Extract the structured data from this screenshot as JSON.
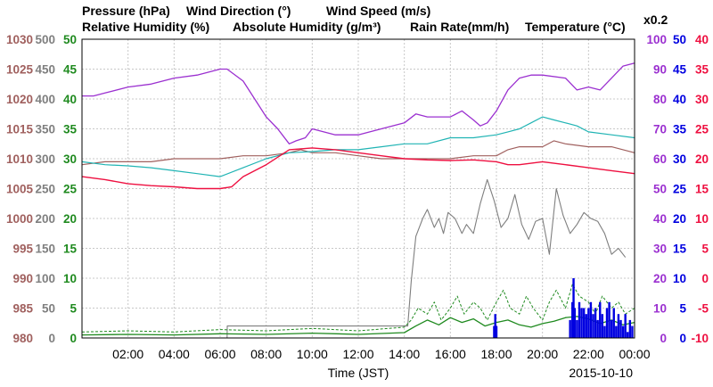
{
  "colors": {
    "pressure": "#A0605E",
    "wind_direction": "#7F7F7F",
    "wind_speed": "#1F8A1F",
    "humidity": "#9B30D0",
    "abs_humidity": "#20B4B4",
    "rain": "#0000E0",
    "temperature": "#EE1040"
  },
  "legend": {
    "pressure": "Pressure (hPa)",
    "wind_direction": "Wind Direction (°)",
    "wind_speed": "Wind Speed (m/s)",
    "humidity": "Relative Humidity (%)",
    "abs_humidity": "Absolute Humidity (g/m³)",
    "rain": "Rain Rate(mm/h)",
    "temperature": "Temperature (°C)",
    "abs_scale": "x0.2"
  },
  "xlabel": "Time (JST)",
  "date": "2015-10-10",
  "chart_data": {
    "type": "line",
    "grid": true,
    "x_ticks": [
      "02:00",
      "04:00",
      "06:00",
      "08:00",
      "10:00",
      "12:00",
      "14:00",
      "16:00",
      "18:00",
      "20:00",
      "22:00",
      "00:00"
    ],
    "xlim": [
      "00:00",
      "24:00"
    ],
    "axes": {
      "pressure": {
        "ticks": [
          "1030",
          "1025",
          "1020",
          "1015",
          "1010",
          "1005",
          "1000",
          "995",
          "990",
          "985",
          "980"
        ],
        "range": [
          980,
          1030
        ]
      },
      "wind_direction": {
        "ticks": [
          "500",
          "450",
          "400",
          "350",
          "300",
          "250",
          "200",
          "150",
          "100",
          "50",
          "0"
        ],
        "range": [
          0,
          500
        ]
      },
      "wind_speed": {
        "ticks": [
          "50",
          "45",
          "40",
          "35",
          "30",
          "25",
          "20",
          "15",
          "10",
          "5",
          "0"
        ],
        "range": [
          0,
          50
        ]
      },
      "humidity": {
        "ticks": [
          "100",
          "90",
          "80",
          "70",
          "60",
          "50",
          "40",
          "30",
          "20",
          "10",
          "0"
        ],
        "range": [
          0,
          100
        ]
      },
      "abs_humidity": {
        "ticks": [
          "50",
          "45",
          "40",
          "35",
          "30",
          "25",
          "20",
          "15",
          "10",
          "5",
          "0"
        ],
        "range": [
          0,
          50
        ]
      },
      "temperature": {
        "ticks": [
          "40",
          "35",
          "30",
          "25",
          "20",
          "15",
          "10",
          "5",
          "0",
          "-5",
          "-10"
        ],
        "range": [
          -10,
          40
        ]
      }
    },
    "series": [
      {
        "name": "Pressure (hPa)",
        "key": "pressure",
        "x": [
          0,
          1,
          2,
          3,
          4,
          5,
          6,
          7,
          8,
          9,
          9.5,
          10,
          11,
          12,
          13,
          14,
          15,
          16,
          17,
          18,
          18.5,
          19,
          20,
          20.5,
          21,
          22,
          23,
          24
        ],
        "values": [
          1009,
          1009.5,
          1009.5,
          1009.5,
          1010,
          1010,
          1010,
          1010.5,
          1010.5,
          1011,
          1011.5,
          1011,
          1011,
          1010.5,
          1010,
          1010,
          1010,
          1010,
          1010.5,
          1010.5,
          1011.5,
          1012,
          1012,
          1013,
          1012.5,
          1012,
          1012,
          1011
        ]
      },
      {
        "name": "Wind Direction (°)",
        "key": "wind_direction",
        "x": [
          0,
          6.3,
          6.31,
          14.15,
          14.3,
          14.5,
          14.8,
          15.0,
          15.3,
          15.5,
          15.7,
          15.9,
          16.2,
          16.5,
          16.7,
          17.0,
          17.3,
          17.6,
          17.9,
          18.2,
          18.5,
          18.8,
          19.1,
          19.4,
          19.7,
          20.0,
          20.3,
          20.6,
          20.9,
          21.2,
          21.5,
          21.8,
          22.1,
          22.4,
          22.7,
          23.0,
          23.3,
          23.6
        ],
        "values": [
          0,
          0,
          20,
          20,
          95,
          170,
          200,
          215,
          185,
          200,
          175,
          210,
          200,
          175,
          190,
          175,
          225,
          265,
          230,
          185,
          200,
          240,
          190,
          165,
          195,
          200,
          140,
          250,
          205,
          175,
          190,
          210,
          200,
          195,
          175,
          140,
          150,
          135
        ]
      },
      {
        "name": "Wind Speed (m/s)",
        "key": "wind_speed",
        "x": [
          0,
          2,
          4,
          6,
          8,
          10,
          12,
          14,
          14.5,
          15,
          15.5,
          16,
          16.5,
          17,
          17.5,
          18,
          18.5,
          19,
          19.5,
          20,
          20.5,
          21,
          21.5,
          22,
          22.5,
          23,
          23.5,
          24
        ],
        "values": [
          0.5,
          0.6,
          0.5,
          0.7,
          0.6,
          0.8,
          0.6,
          0.9,
          2.0,
          3.0,
          2.2,
          3.4,
          2.6,
          3.2,
          2.0,
          2.6,
          3.0,
          2.2,
          1.8,
          2.4,
          2.8,
          3.4,
          3.6,
          3.2,
          2.4,
          3.0,
          2.2,
          2.6
        ]
      },
      {
        "name": "Wind Speed (m/s)",
        "key": "wind_gust",
        "x": [
          0,
          2,
          4,
          6,
          8,
          10,
          12,
          14,
          14.3,
          14.6,
          15,
          15.3,
          15.6,
          16,
          16.3,
          16.6,
          17,
          17.3,
          17.6,
          18,
          18.3,
          18.6,
          19,
          19.3,
          19.6,
          20,
          20.3,
          20.6,
          21,
          21.3,
          21.6,
          22,
          22.3,
          22.6,
          23,
          23.3,
          23.6,
          24
        ],
        "values": [
          1,
          1.2,
          1.0,
          1.4,
          1.2,
          1.6,
          1.2,
          1.8,
          3,
          5,
          4,
          6,
          3,
          5,
          7,
          4,
          6,
          5,
          3,
          6,
          8,
          5,
          4,
          7,
          5,
          3,
          6,
          8,
          5,
          9,
          7,
          6,
          4,
          7,
          5,
          6,
          4,
          5
        ]
      },
      {
        "name": "Relative Humidity (%)",
        "key": "humidity",
        "x": [
          0,
          0.5,
          1,
          2,
          3,
          4,
          5,
          5.5,
          6,
          6.3,
          7,
          8,
          8.5,
          9,
          9.3,
          9.7,
          10,
          11,
          12,
          13,
          14,
          14.5,
          15,
          16,
          16.5,
          17,
          17.3,
          17.6,
          18,
          18.5,
          19,
          19.5,
          20,
          21,
          21.5,
          22,
          22.5,
          23,
          23.5,
          24
        ],
        "values": [
          81,
          81,
          82,
          84,
          85,
          87,
          88,
          89,
          90,
          90,
          86,
          74,
          70,
          65,
          66,
          67,
          70,
          68,
          68,
          70,
          72,
          75,
          74,
          74,
          76,
          73,
          71,
          72,
          76,
          83,
          87,
          88,
          88,
          87,
          83,
          84,
          83,
          87,
          91,
          92
        ]
      },
      {
        "name": "Absolute Humidity (g/m³)",
        "key": "abs_humidity",
        "x": [
          0,
          1,
          2,
          3,
          4,
          5,
          6,
          7,
          8,
          9,
          10,
          11,
          12,
          13,
          14,
          15,
          16,
          17,
          18,
          18.5,
          19,
          19.5,
          20,
          20.5,
          21,
          21.5,
          22,
          23,
          24
        ],
        "values": [
          29.5,
          29.0,
          28.8,
          28.5,
          28.0,
          27.5,
          27.0,
          28.5,
          30.0,
          31.0,
          31.2,
          31.5,
          31.5,
          32,
          32.5,
          32.5,
          33.5,
          33.5,
          34.0,
          34.5,
          35.0,
          36.0,
          37.0,
          36.5,
          36.0,
          35.5,
          34.5,
          34.0,
          33.5
        ]
      },
      {
        "name": "Temperature (°C)",
        "key": "temperature",
        "x": [
          0,
          1,
          2,
          3,
          4,
          5,
          6,
          6.5,
          7,
          8,
          9,
          10,
          11,
          12,
          13,
          14,
          15,
          16,
          17,
          18,
          18.5,
          19,
          20,
          21,
          22,
          23,
          24
        ],
        "values": [
          17.0,
          16.5,
          15.8,
          15.5,
          15.3,
          15.0,
          15.0,
          15.3,
          17.0,
          19.0,
          21.5,
          21.8,
          21.5,
          21.0,
          20.5,
          20.0,
          19.8,
          19.7,
          19.8,
          19.5,
          19.0,
          19.0,
          19.5,
          19.0,
          18.5,
          18.0,
          17.5
        ]
      },
      {
        "name": "Rain Rate(mm/h)",
        "key": "rain",
        "x": [
          17.85,
          17.9,
          17.95,
          18.0,
          18.05,
          21.2,
          21.3,
          21.35,
          21.4,
          21.5,
          21.6,
          21.7,
          21.8,
          21.9,
          22.0,
          22.1,
          22.2,
          22.3,
          22.4,
          22.5,
          22.6,
          22.7,
          22.8,
          22.9,
          23.0,
          23.1,
          23.2,
          23.3,
          23.4,
          23.5,
          23.6,
          23.7,
          23.8,
          23.9
        ],
        "values": [
          0,
          2,
          4,
          2,
          0,
          3,
          6,
          10,
          5,
          3,
          6,
          5,
          5,
          4,
          5,
          6,
          4,
          5,
          3,
          6,
          4,
          2,
          5,
          6,
          3,
          5,
          2,
          4,
          3,
          2,
          4,
          1,
          3,
          2
        ]
      }
    ]
  }
}
